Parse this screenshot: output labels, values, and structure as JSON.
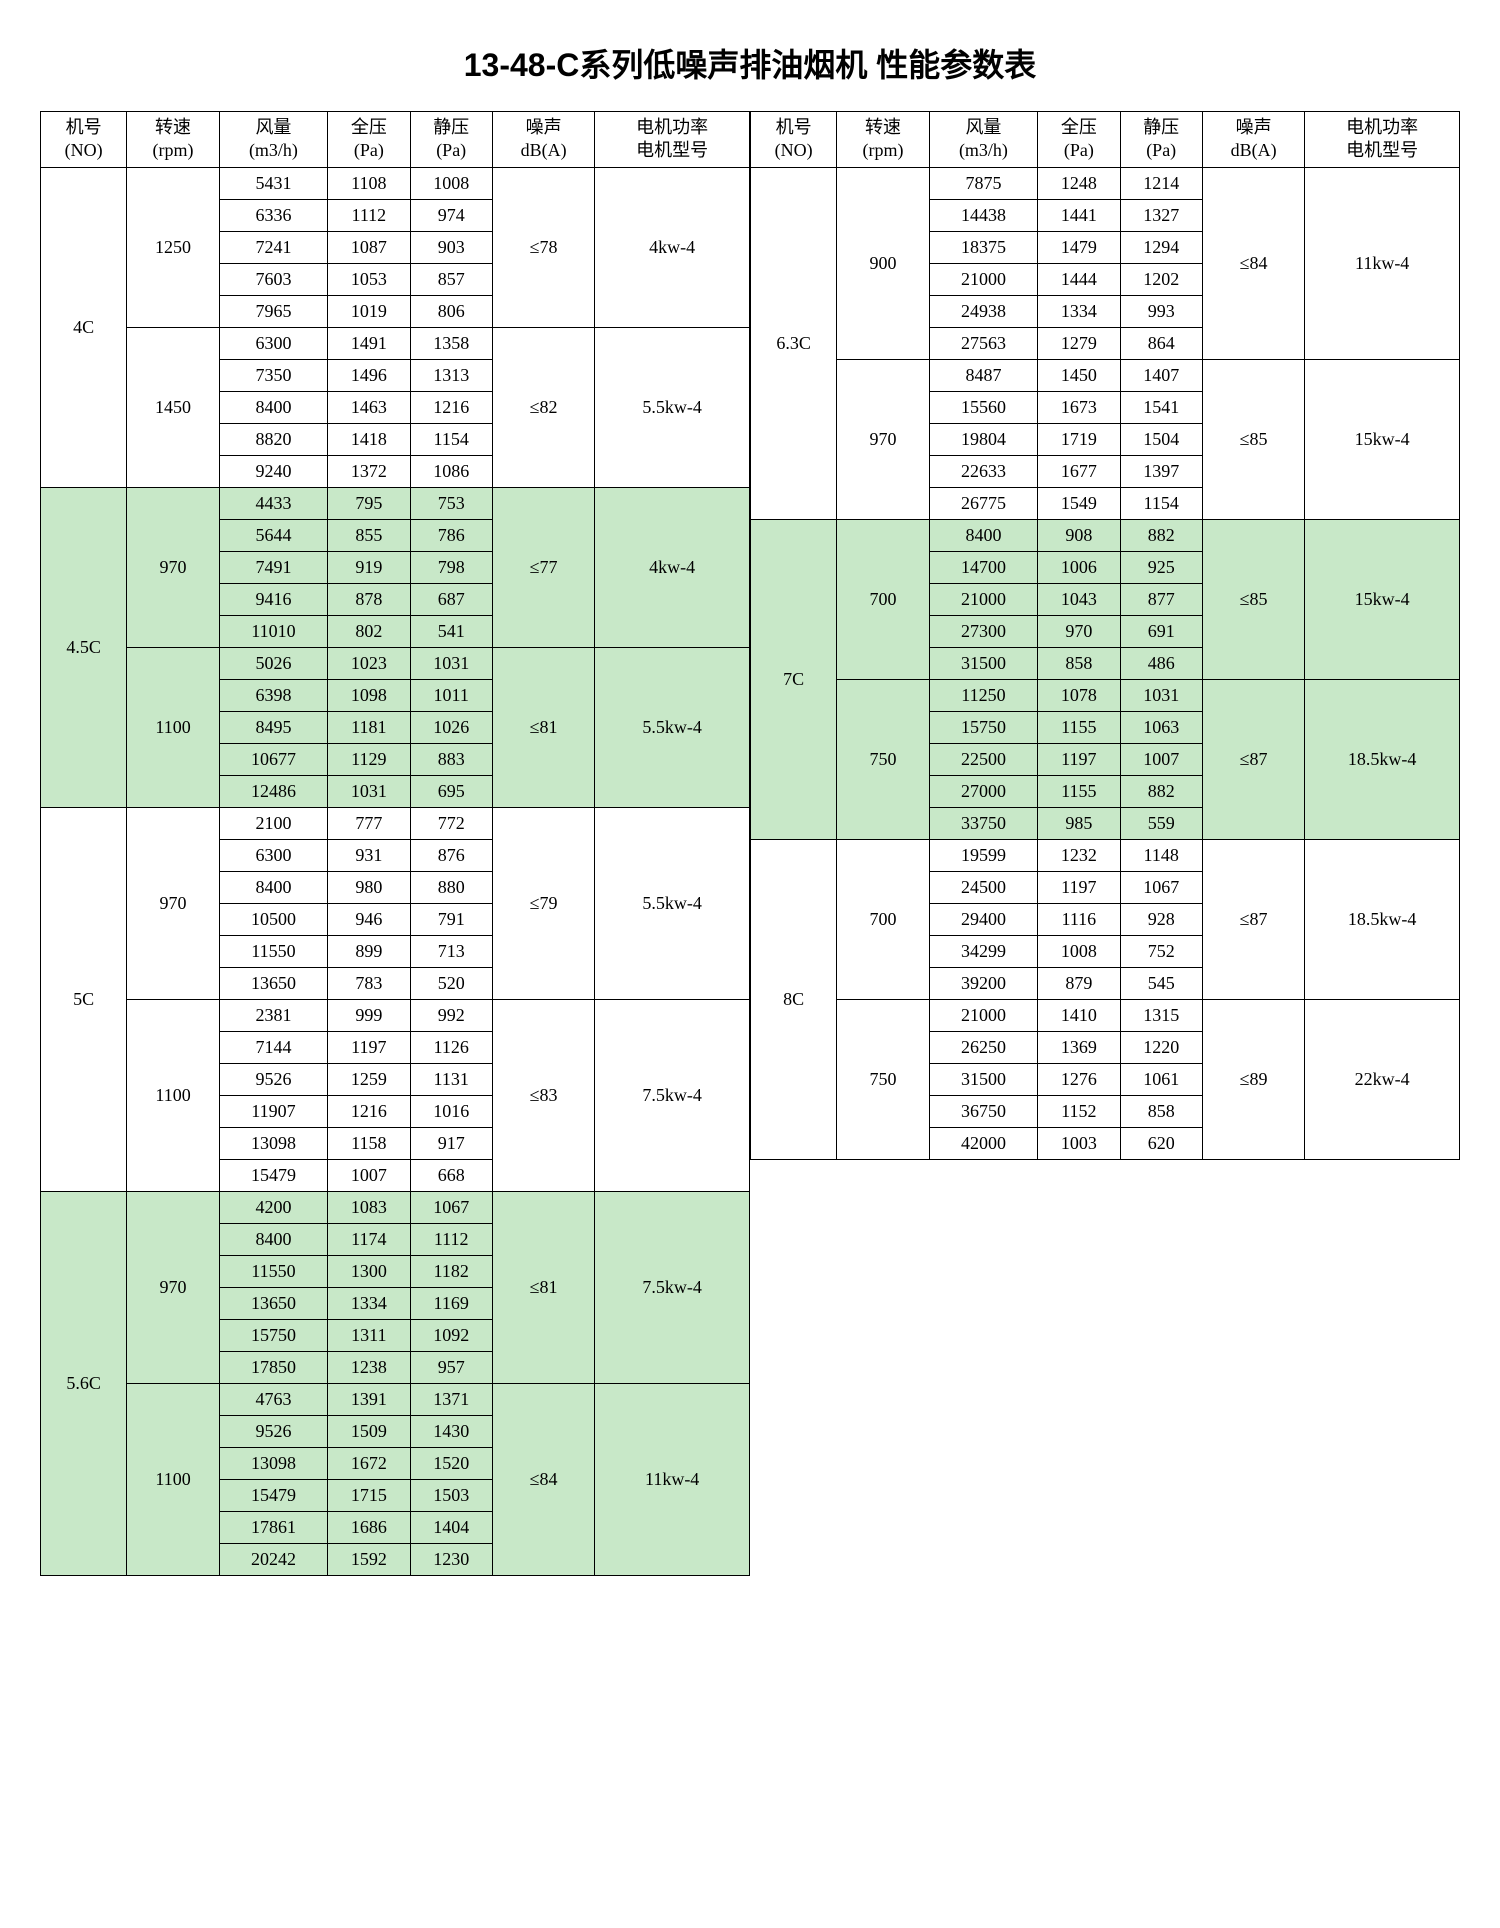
{
  "title": "13-48-C系列低噪声排油烟机  性能参数表",
  "headers": {
    "no": "机号\n(NO)",
    "rpm": "转速\n(rpm)",
    "flow": "风量\n(m3/h)",
    "total": "全压\n(Pa)",
    "static": "静压\n(Pa)",
    "noise": "噪声\ndB(A)",
    "motor": "电机功率\n电机型号"
  },
  "colors": {
    "green": "#c8e8c8",
    "border": "#000000",
    "bg": "#ffffff"
  },
  "left": [
    {
      "no": "4C",
      "green": false,
      "groups": [
        {
          "rpm": "1250",
          "noise": "≤78",
          "motor": "4kw-4",
          "rows": [
            [
              "5431",
              "1108",
              "1008"
            ],
            [
              "6336",
              "1112",
              "974"
            ],
            [
              "7241",
              "1087",
              "903"
            ],
            [
              "7603",
              "1053",
              "857"
            ],
            [
              "7965",
              "1019",
              "806"
            ]
          ]
        },
        {
          "rpm": "1450",
          "noise": "≤82",
          "motor": "5.5kw-4",
          "rows": [
            [
              "6300",
              "1491",
              "1358"
            ],
            [
              "7350",
              "1496",
              "1313"
            ],
            [
              "8400",
              "1463",
              "1216"
            ],
            [
              "8820",
              "1418",
              "1154"
            ],
            [
              "9240",
              "1372",
              "1086"
            ]
          ]
        }
      ]
    },
    {
      "no": "4.5C",
      "green": true,
      "groups": [
        {
          "rpm": "970",
          "noise": "≤77",
          "motor": "4kw-4",
          "rows": [
            [
              "4433",
              "795",
              "753"
            ],
            [
              "5644",
              "855",
              "786"
            ],
            [
              "7491",
              "919",
              "798"
            ],
            [
              "9416",
              "878",
              "687"
            ],
            [
              "11010",
              "802",
              "541"
            ]
          ]
        },
        {
          "rpm": "1100",
          "noise": "≤81",
          "motor": "5.5kw-4",
          "rows": [
            [
              "5026",
              "1023",
              "1031"
            ],
            [
              "6398",
              "1098",
              "1011"
            ],
            [
              "8495",
              "1181",
              "1026"
            ],
            [
              "10677",
              "1129",
              "883"
            ],
            [
              "12486",
              "1031",
              "695"
            ]
          ]
        }
      ]
    },
    {
      "no": "5C",
      "green": false,
      "groups": [
        {
          "rpm": "970",
          "noise": "≤79",
          "motor": "5.5kw-4",
          "rows": [
            [
              "2100",
              "777",
              "772"
            ],
            [
              "6300",
              "931",
              "876"
            ],
            [
              "8400",
              "980",
              "880"
            ],
            [
              "10500",
              "946",
              "791"
            ],
            [
              "11550",
              "899",
              "713"
            ],
            [
              "13650",
              "783",
              "520"
            ]
          ]
        },
        {
          "rpm": "1100",
          "noise": "≤83",
          "motor": "7.5kw-4",
          "rows": [
            [
              "2381",
              "999",
              "992"
            ],
            [
              "7144",
              "1197",
              "1126"
            ],
            [
              "9526",
              "1259",
              "1131"
            ],
            [
              "11907",
              "1216",
              "1016"
            ],
            [
              "13098",
              "1158",
              "917"
            ],
            [
              "15479",
              "1007",
              "668"
            ]
          ]
        }
      ]
    },
    {
      "no": "5.6C",
      "green": true,
      "groups": [
        {
          "rpm": "970",
          "noise": "≤81",
          "motor": "7.5kw-4",
          "rows": [
            [
              "4200",
              "1083",
              "1067"
            ],
            [
              "8400",
              "1174",
              "1112"
            ],
            [
              "11550",
              "1300",
              "1182"
            ],
            [
              "13650",
              "1334",
              "1169"
            ],
            [
              "15750",
              "1311",
              "1092"
            ],
            [
              "17850",
              "1238",
              "957"
            ]
          ]
        },
        {
          "rpm": "1100",
          "noise": "≤84",
          "motor": "11kw-4",
          "rows": [
            [
              "4763",
              "1391",
              "1371"
            ],
            [
              "9526",
              "1509",
              "1430"
            ],
            [
              "13098",
              "1672",
              "1520"
            ],
            [
              "15479",
              "1715",
              "1503"
            ],
            [
              "17861",
              "1686",
              "1404"
            ],
            [
              "20242",
              "1592",
              "1230"
            ]
          ]
        }
      ]
    }
  ],
  "right": [
    {
      "no": "6.3C",
      "green": false,
      "groups": [
        {
          "rpm": "900",
          "noise": "≤84",
          "motor": "11kw-4",
          "rows": [
            [
              "7875",
              "1248",
              "1214"
            ],
            [
              "14438",
              "1441",
              "1327"
            ],
            [
              "18375",
              "1479",
              "1294"
            ],
            [
              "21000",
              "1444",
              "1202"
            ],
            [
              "24938",
              "1334",
              "993"
            ],
            [
              "27563",
              "1279",
              "864"
            ]
          ]
        },
        {
          "rpm": "970",
          "noise": "≤85",
          "motor": "15kw-4",
          "rows": [
            [
              "8487",
              "1450",
              "1407"
            ],
            [
              "15560",
              "1673",
              "1541"
            ],
            [
              "19804",
              "1719",
              "1504"
            ],
            [
              "22633",
              "1677",
              "1397"
            ],
            [
              "26775",
              "1549",
              "1154"
            ]
          ]
        }
      ]
    },
    {
      "no": "7C",
      "green": true,
      "groups": [
        {
          "rpm": "700",
          "noise": "≤85",
          "motor": "15kw-4",
          "rows": [
            [
              "8400",
              "908",
              "882"
            ],
            [
              "14700",
              "1006",
              "925"
            ],
            [
              "21000",
              "1043",
              "877"
            ],
            [
              "27300",
              "970",
              "691"
            ],
            [
              "31500",
              "858",
              "486"
            ]
          ]
        },
        {
          "rpm": "750",
          "noise": "≤87",
          "motor": "18.5kw-4",
          "rows": [
            [
              "11250",
              "1078",
              "1031"
            ],
            [
              "15750",
              "1155",
              "1063"
            ],
            [
              "22500",
              "1197",
              "1007"
            ],
            [
              "27000",
              "1155",
              "882"
            ],
            [
              "33750",
              "985",
              "559"
            ]
          ]
        }
      ]
    },
    {
      "no": "8C",
      "green": false,
      "groups": [
        {
          "rpm": "700",
          "noise": "≤87",
          "motor": "18.5kw-4",
          "rows": [
            [
              "19599",
              "1232",
              "1148"
            ],
            [
              "24500",
              "1197",
              "1067"
            ],
            [
              "29400",
              "1116",
              "928"
            ],
            [
              "34299",
              "1008",
              "752"
            ],
            [
              "39200",
              "879",
              "545"
            ]
          ]
        },
        {
          "rpm": "750",
          "noise": "≤89",
          "motor": "22kw-4",
          "rows": [
            [
              "21000",
              "1410",
              "1315"
            ],
            [
              "26250",
              "1369",
              "1220"
            ],
            [
              "31500",
              "1276",
              "1061"
            ],
            [
              "36750",
              "1152",
              "858"
            ],
            [
              "42000",
              "1003",
              "620"
            ]
          ]
        }
      ]
    }
  ]
}
